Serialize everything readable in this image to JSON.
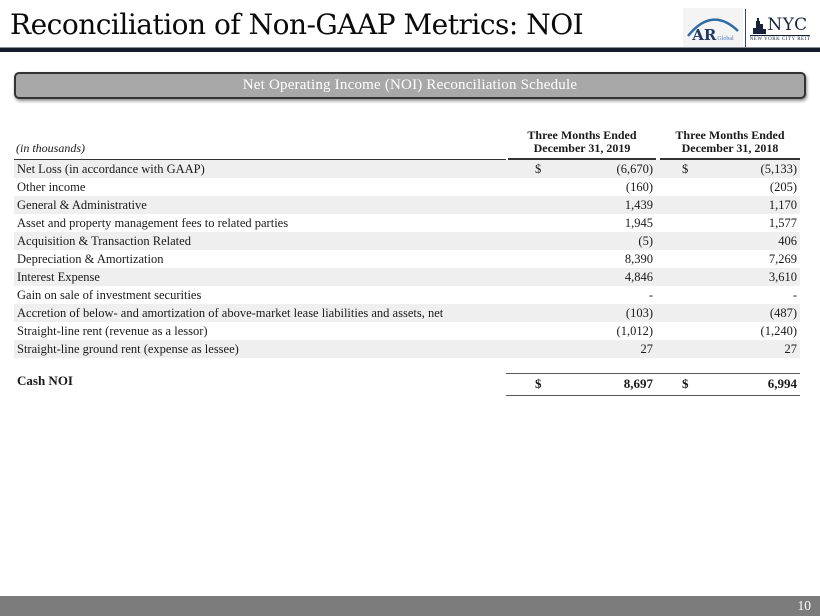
{
  "slide": {
    "title": "Reconciliation of Non-GAAP Metrics: NOI",
    "page_number": "10"
  },
  "logos": {
    "ar_global": {
      "name": "AR",
      "suffix": "Global"
    },
    "nyc_reit": {
      "name": "NYC",
      "tagline": "NEW YORK CITY REIT"
    }
  },
  "banner": {
    "title": "Net Operating Income (NOI) Reconciliation Schedule"
  },
  "table": {
    "units_note": "(in thousands)",
    "columns": [
      {
        "line1": "Three Months Ended",
        "line2": "December 31, 2019"
      },
      {
        "line1": "Three Months Ended",
        "line2": "December 31, 2018"
      }
    ],
    "rows": [
      {
        "label": "Net Loss (in accordance with GAAP)",
        "currency": "$",
        "v2019": "(6,670)",
        "v2018": "(5,133)",
        "shaded": true
      },
      {
        "label": "Other income",
        "currency": "",
        "v2019": "(160)",
        "v2018": "(205)",
        "shaded": false
      },
      {
        "label": "General & Administrative",
        "currency": "",
        "v2019": "1,439",
        "v2018": "1,170",
        "shaded": true
      },
      {
        "label": "Asset and property management fees to related parties",
        "currency": "",
        "v2019": "1,945",
        "v2018": "1,577",
        "shaded": false
      },
      {
        "label": "Acquisition & Transaction Related",
        "currency": "",
        "v2019": "(5)",
        "v2018": "406",
        "shaded": true
      },
      {
        "label": "Depreciation & Amortization",
        "currency": "",
        "v2019": "8,390",
        "v2018": "7,269",
        "shaded": false
      },
      {
        "label": "Interest Expense",
        "currency": "",
        "v2019": "4,846",
        "v2018": "3,610",
        "shaded": true
      },
      {
        "label": "Gain on sale of investment securities",
        "currency": "",
        "v2019": "-",
        "v2018": "-",
        "shaded": false
      },
      {
        "label": "Accretion of below- and amortization of above-market lease liabilities and assets, net",
        "currency": "",
        "v2019": "(103)",
        "v2018": "(487)",
        "shaded": true
      },
      {
        "label": "Straight-line rent (revenue as a lessor)",
        "currency": "",
        "v2019": "(1,012)",
        "v2018": "(1,240)",
        "shaded": false
      },
      {
        "label": "Straight-line ground rent (expense as lessee)",
        "currency": "",
        "v2019": "27",
        "v2018": "27",
        "shaded": true
      }
    ],
    "total_row": {
      "label": "Cash NOI",
      "currency": "$",
      "v2019": "8,697",
      "v2018": "6,994"
    }
  },
  "colors": {
    "accent_navy": "#141e2b",
    "banner_gray": "#a8a8a8",
    "row_shade": "#efefef",
    "footer_gray": "#7c7c7c",
    "logo_blue": "#2e6da4",
    "logo_navy": "#1f3864"
  }
}
